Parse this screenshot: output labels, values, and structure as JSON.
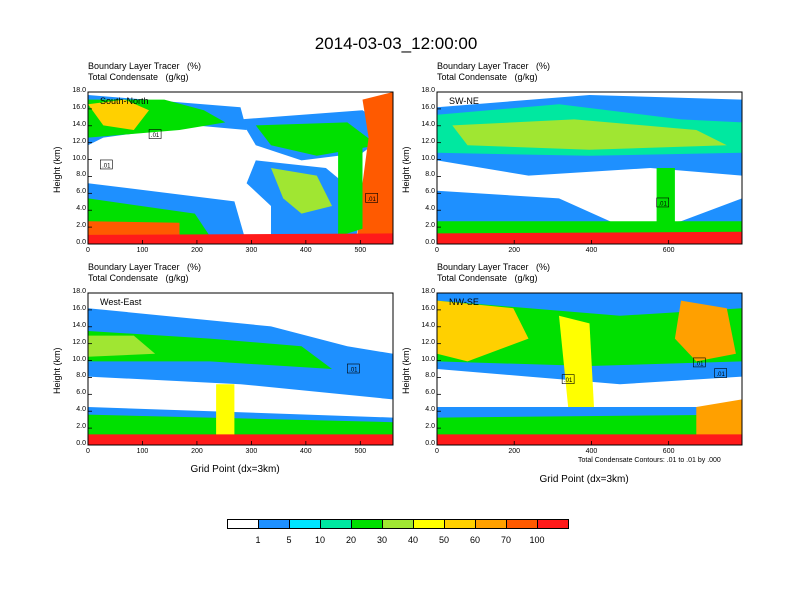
{
  "title": "2014-03-03_12:00:00",
  "panel_header": {
    "line1": "Boundary Layer Tracer   (%)",
    "line2": "Total Condensate   (g/kg)"
  },
  "y_axis_label": "Height (km)",
  "x_axis_label": "Grid Point (dx=3km)",
  "contour_note": "Total Condensate Contours: .01 to .01 by .000",
  "colors": {
    "levels": [
      "#ffffff",
      "#1e90ff",
      "#00e5ff",
      "#00e8a0",
      "#00e000",
      "#a0e632",
      "#ffff00",
      "#ffd000",
      "#ffa000",
      "#ff5a00",
      "#ff1a1a"
    ]
  },
  "colorbar_labels": [
    "1",
    "5",
    "10",
    "20",
    "30",
    "40",
    "50",
    "60",
    "70",
    "100"
  ],
  "chart_data": [
    {
      "type": "heatmap",
      "panel_label": "South-North",
      "x_ticks": [
        "0",
        "100",
        "200",
        "300",
        "400",
        "500"
      ],
      "xlim": [
        0,
        560
      ],
      "y_ticks": [
        "0.0",
        "2.0",
        "4.0",
        "6.0",
        "8.0",
        "10.0",
        "12.0",
        "14.0",
        "16.0",
        "18.0"
      ],
      "ylim": [
        0,
        18
      ],
      "contour_labels": [
        ".01",
        ".01",
        ".01"
      ]
    },
    {
      "type": "heatmap",
      "panel_label": "SW-NE",
      "x_ticks": [
        "0",
        "200",
        "400",
        "600"
      ],
      "xlim": [
        0,
        790
      ],
      "y_ticks": [
        "0.0",
        "2.0",
        "4.0",
        "6.0",
        "8.0",
        "10.0",
        "12.0",
        "14.0",
        "16.0",
        "18.0"
      ],
      "ylim": [
        0,
        18
      ],
      "contour_labels": [
        ".01"
      ]
    },
    {
      "type": "heatmap",
      "panel_label": "West-East",
      "x_ticks": [
        "0",
        "100",
        "200",
        "300",
        "400",
        "500"
      ],
      "xlim": [
        0,
        560
      ],
      "y_ticks": [
        "0.0",
        "2.0",
        "4.0",
        "6.0",
        "8.0",
        "10.0",
        "12.0",
        "14.0",
        "16.0",
        "18.0"
      ],
      "ylim": [
        0,
        18
      ],
      "contour_labels": [
        ".01"
      ]
    },
    {
      "type": "heatmap",
      "panel_label": "NW-SE",
      "x_ticks": [
        "0",
        "200",
        "400",
        "600"
      ],
      "xlim": [
        0,
        790
      ],
      "y_ticks": [
        "0.0",
        "2.0",
        "4.0",
        "6.0",
        "8.0",
        "10.0",
        "12.0",
        "14.0",
        "16.0",
        "18.0"
      ],
      "ylim": [
        0,
        18
      ],
      "contour_labels": [
        ".01",
        ".01",
        ".01"
      ]
    }
  ]
}
